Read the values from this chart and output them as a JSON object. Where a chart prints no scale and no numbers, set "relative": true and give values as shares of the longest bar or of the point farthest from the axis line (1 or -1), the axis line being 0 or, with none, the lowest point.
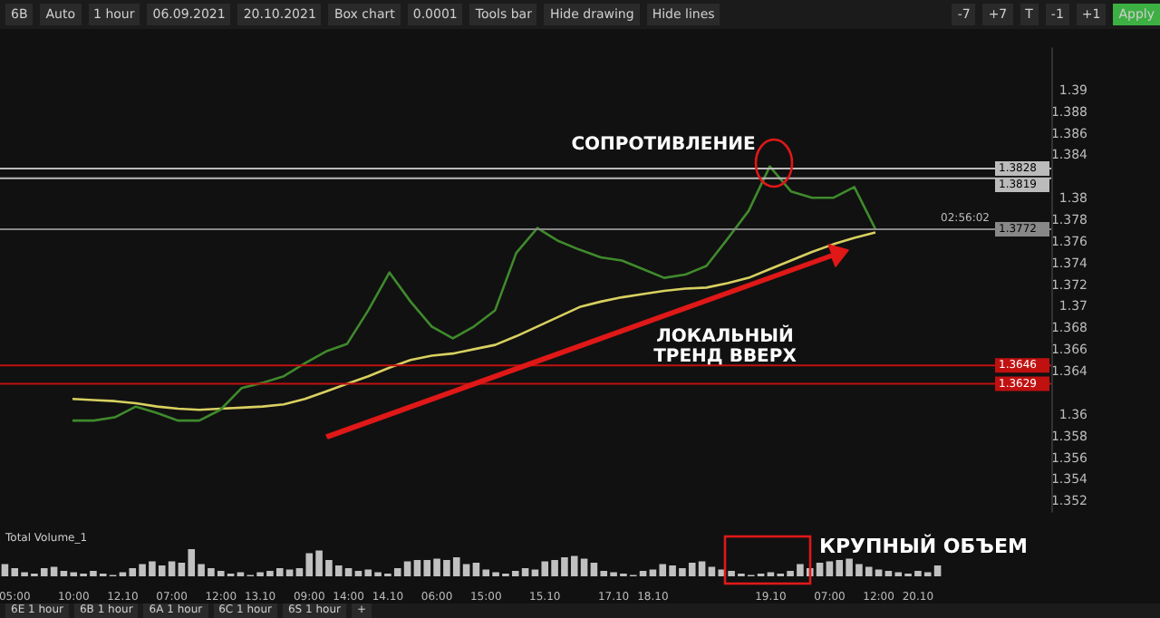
{
  "chart_data": [
    {
      "type": "other",
      "annotations": [
        "6B",
        "Auto",
        "1 hour",
        "06.09.2021",
        "20.10.2021",
        "Box chart",
        "0.0001",
        "Tools bar",
        "Hide drawing",
        "Hide lines",
        "-7",
        "+7",
        "T",
        "-1",
        "+1",
        "Apply"
      ]
    },
    {
      "type": "line",
      "categories": [
        null,
        null,
        null,
        null,
        null,
        null,
        null,
        null,
        null,
        null,
        null,
        null,
        null,
        null,
        null,
        null,
        null,
        null,
        null,
        null,
        null,
        null,
        null,
        null,
        null,
        null,
        null,
        null,
        null,
        null,
        null,
        null,
        null,
        null,
        null,
        null,
        null,
        null,
        null
      ],
      "ylim": [
        1.351,
        1.394
      ],
      "yticks": [
        1.352,
        1.354,
        1.356,
        1.358,
        1.36,
        1.364,
        1.366,
        1.368,
        1.37,
        1.372,
        1.374,
        1.376,
        1.378,
        1.38,
        1.384,
        1.386,
        1.388,
        1.39
      ],
      "tick_labels": "y",
      "legend": false,
      "grid": false,
      "marker": "none",
      "line_style": "solid",
      "series": [
        {
          "color": "#3f8a2c",
          "values": [
            1.3595,
            1.3595,
            1.3598,
            1.3608,
            1.3602,
            1.3595,
            1.3595,
            1.3605,
            1.3625,
            1.363,
            1.3636,
            1.3648,
            1.3659,
            1.3666,
            1.3697,
            1.3732,
            1.3705,
            1.3682,
            1.3671,
            1.3682,
            1.3697,
            1.375,
            1.3773,
            1.3761,
            1.3753,
            1.3746,
            1.3743,
            1.3735,
            1.3727,
            1.373,
            1.3738,
            1.3763,
            1.3789,
            1.383,
            1.3807,
            1.3801,
            1.3801,
            1.3811,
            1.3772
          ]
        },
        {
          "color": "#d8d060",
          "values": [
            1.3615,
            1.3614,
            1.3613,
            1.3611,
            1.3608,
            1.3606,
            1.3605,
            1.3606,
            1.3607,
            1.3608,
            1.361,
            1.3615,
            1.3622,
            1.3629,
            1.3636,
            1.3644,
            1.3651,
            1.3655,
            1.3657,
            1.3661,
            1.3665,
            1.3673,
            1.3682,
            1.3691,
            1.37,
            1.3705,
            1.3709,
            1.3712,
            1.3715,
            1.3717,
            1.3718,
            1.3722,
            1.3727,
            1.3735,
            1.3743,
            1.3751,
            1.3758,
            1.3764,
            1.3769
          ]
        }
      ],
      "ref_lines": [
        {
          "axis": "y",
          "value": 1.3828,
          "label": "1.3828",
          "color": "#bbbbbb"
        },
        {
          "axis": "y",
          "value": 1.3819,
          "label": "1.3819",
          "color": "#bbbbbb"
        },
        {
          "axis": "y",
          "value": 1.3772,
          "label": "1.3772",
          "color": "#888888"
        },
        {
          "axis": "y",
          "value": 1.3646,
          "label": "1.3646",
          "color": "#c01010"
        },
        {
          "axis": "y",
          "value": 1.3629,
          "label": "1.3629",
          "color": "#c01010"
        }
      ],
      "annotations": [
        "СОПРОТИВЛЕНИЕ",
        "ЛОКАЛЬНЫЙ ТРЕНД ВВЕРХ",
        "02:56:02"
      ]
    },
    {
      "type": "bar",
      "title": "Total Volume_1",
      "relative": true,
      "legend": false,
      "color": "#c0c0c0",
      "categories": [
        null,
        "05:00",
        null,
        null,
        null,
        null,
        null,
        "10:00",
        null,
        null,
        null,
        null,
        "12.10",
        null,
        null,
        null,
        null,
        "07:00",
        null,
        null,
        null,
        null,
        "12:00",
        null,
        null,
        null,
        "13.10",
        null,
        null,
        null,
        null,
        "09:00",
        null,
        null,
        null,
        "14:00",
        null,
        null,
        null,
        "14.10",
        null,
        null,
        null,
        null,
        "06:00",
        null,
        null,
        null,
        null,
        "15:00",
        null,
        null,
        null,
        null,
        null,
        "15.10",
        null,
        null,
        null,
        null,
        null,
        null,
        "17.10",
        null,
        null,
        null,
        "18.10",
        null,
        null,
        null,
        null,
        null,
        null,
        null,
        null,
        null,
        null,
        null,
        "19.10",
        null,
        null,
        null,
        null,
        null,
        "07:00",
        null,
        null,
        null,
        null,
        "12:00",
        null,
        null,
        null,
        "20.10",
        null,
        null
      ],
      "values": [
        0.45,
        0.3,
        0.15,
        0.1,
        0.3,
        0.35,
        0.2,
        0.15,
        0.1,
        0.2,
        0.1,
        0.05,
        0.15,
        0.3,
        0.45,
        0.55,
        0.4,
        0.55,
        0.5,
        1.0,
        0.45,
        0.3,
        0.2,
        0.1,
        0.15,
        0.05,
        0.15,
        0.2,
        0.3,
        0.25,
        0.3,
        0.85,
        0.95,
        0.6,
        0.4,
        0.3,
        0.2,
        0.25,
        0.15,
        0.1,
        0.3,
        0.55,
        0.6,
        0.6,
        0.65,
        0.6,
        0.7,
        0.45,
        0.5,
        0.25,
        0.15,
        0.1,
        0.2,
        0.3,
        0.25,
        0.55,
        0.6,
        0.7,
        0.75,
        0.65,
        0.5,
        0.2,
        0.15,
        0.1,
        0.05,
        0.2,
        0.25,
        0.45,
        0.4,
        0.3,
        0.5,
        0.55,
        0.35,
        0.25,
        0.2,
        0.1,
        0.05,
        0.1,
        0.15,
        0.1,
        0.2,
        0.45,
        0.3,
        0.5,
        0.55,
        0.6,
        0.65,
        0.45,
        0.35,
        0.25,
        0.2,
        0.15,
        0.1,
        0.2,
        0.15,
        0.4
      ],
      "annotations": [
        "КРУПНЫЙ ОБЪЕМ"
      ]
    },
    {
      "type": "other",
      "annotations": [
        "6E 1 hour",
        "6B 1 hour",
        "6A 1 hour",
        "6C 1 hour",
        "6S 1 hour",
        "+"
      ]
    }
  ]
}
